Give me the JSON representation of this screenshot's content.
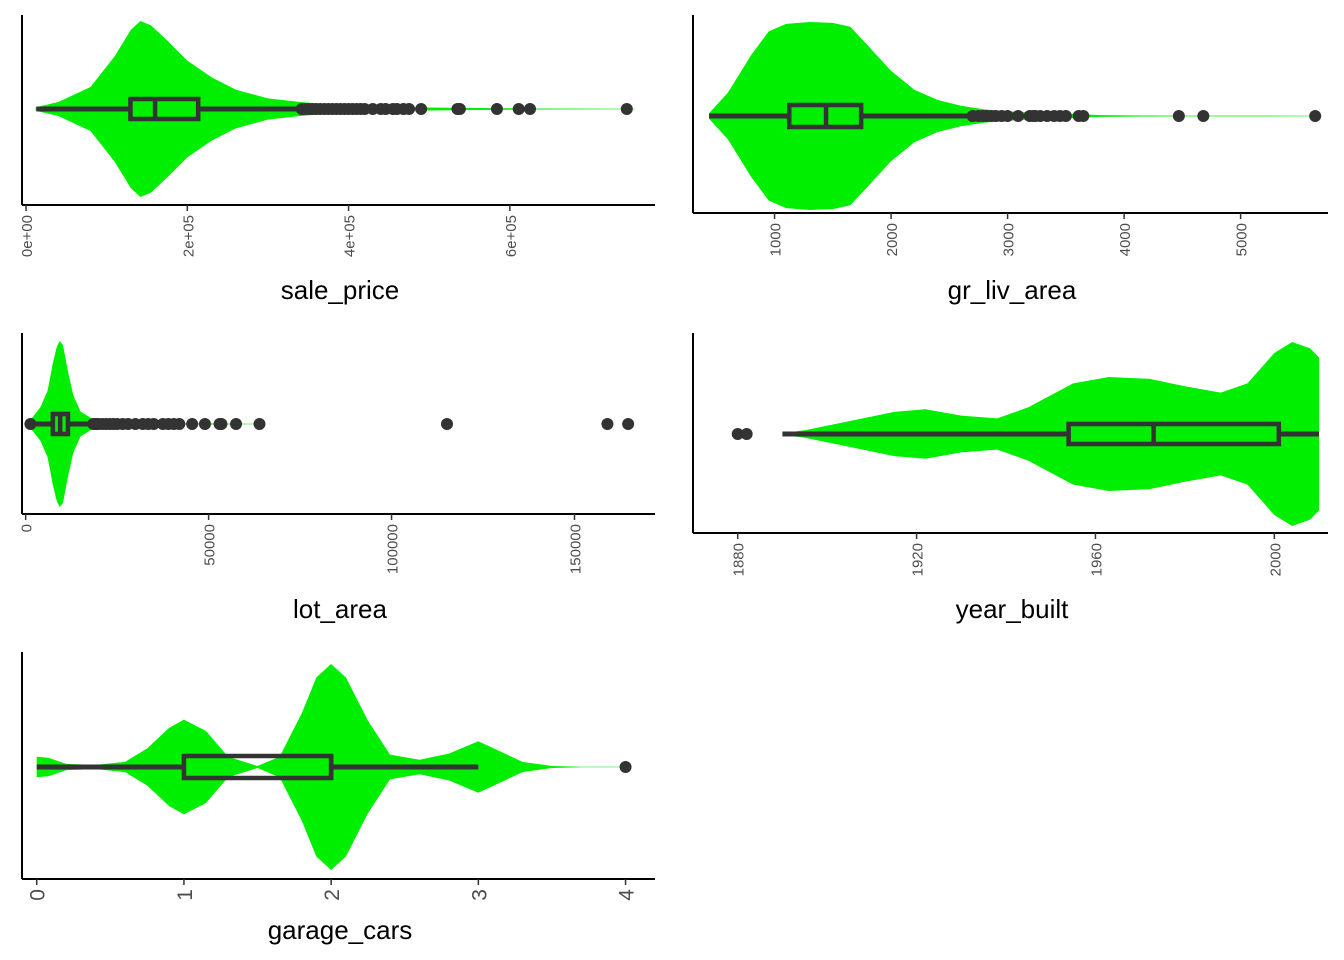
{
  "chart_data": [
    {
      "type": "violin-box",
      "xlabel": "sale_price",
      "xlim": [
        -5000,
        780000
      ],
      "ticks": [
        0,
        200000,
        400000,
        600000
      ],
      "tick_labels": [
        "0e+00",
        "2e+05",
        "4e+05",
        "6e+05"
      ],
      "fill_color": "#00ee00",
      "box": {
        "whisker_low": 12789,
        "q1": 129500,
        "median": 160000,
        "q3": 213500,
        "whisker_high": 339000
      },
      "density": [
        [
          12000,
          0.02
        ],
        [
          40000,
          0.08
        ],
        [
          80000,
          0.25
        ],
        [
          110000,
          0.6
        ],
        [
          130000,
          0.9
        ],
        [
          142000,
          1.0
        ],
        [
          155000,
          0.95
        ],
        [
          175000,
          0.78
        ],
        [
          200000,
          0.55
        ],
        [
          230000,
          0.36
        ],
        [
          260000,
          0.22
        ],
        [
          300000,
          0.12
        ],
        [
          340000,
          0.08
        ],
        [
          380000,
          0.05
        ],
        [
          420000,
          0.03
        ],
        [
          470000,
          0.02
        ],
        [
          540000,
          0.012
        ],
        [
          600000,
          0.008
        ],
        [
          630000,
          0.006
        ],
        [
          700000,
          0.004
        ],
        [
          755000,
          0.003
        ]
      ],
      "outliers": [
        342000,
        345000,
        350000,
        355000,
        360000,
        365000,
        370000,
        375000,
        380000,
        385000,
        390000,
        395000,
        400000,
        405000,
        410000,
        415000,
        420000,
        430000,
        440000,
        446000,
        455000,
        460000,
        468000,
        475000,
        490000,
        535000,
        538000,
        584000,
        611000,
        625000,
        745000
      ]
    },
    {
      "type": "violin-box",
      "xlabel": "gr_liv_area",
      "xlim": [
        300,
        5750
      ],
      "ticks": [
        1000,
        2000,
        3000,
        4000,
        5000
      ],
      "tick_labels": [
        "1000",
        "2000",
        "3000",
        "4000",
        "5000"
      ],
      "fill_color": "#00ee00",
      "box": {
        "whisker_low": 438,
        "q1": 1126,
        "median": 1442,
        "q3": 1743,
        "whisker_high": 2667
      },
      "density": [
        [
          438,
          0.03
        ],
        [
          600,
          0.25
        ],
        [
          800,
          0.65
        ],
        [
          950,
          0.9
        ],
        [
          1100,
          0.98
        ],
        [
          1300,
          1.0
        ],
        [
          1500,
          0.99
        ],
        [
          1650,
          0.95
        ],
        [
          1800,
          0.75
        ],
        [
          2000,
          0.48
        ],
        [
          2200,
          0.28
        ],
        [
          2400,
          0.17
        ],
        [
          2600,
          0.11
        ],
        [
          2800,
          0.07
        ],
        [
          3000,
          0.05
        ],
        [
          3300,
          0.03
        ],
        [
          3600,
          0.02
        ],
        [
          3800,
          0.01
        ],
        [
          4200,
          0.005
        ],
        [
          4500,
          0.004
        ],
        [
          4700,
          0.004
        ],
        [
          5650,
          0.003
        ]
      ],
      "outliers": [
        2700,
        2750,
        2790,
        2820,
        2860,
        2900,
        2950,
        3000,
        3090,
        3190,
        3220,
        3240,
        3280,
        3340,
        3400,
        3450,
        3500,
        3610,
        3650,
        4470,
        4680,
        5640
      ]
    },
    {
      "type": "violin-box",
      "xlabel": "lot_area",
      "xlim": [
        -1000,
        172000
      ],
      "ticks": [
        0,
        50000,
        100000,
        150000
      ],
      "tick_labels": [
        "0",
        "50000",
        "100000",
        "150000"
      ],
      "fill_color": "#00ee00",
      "box": {
        "whisker_low": 1300,
        "q1": 7440,
        "median": 9436,
        "q3": 11555,
        "whisker_high": 17700
      },
      "density": [
        [
          1300,
          0.05
        ],
        [
          4000,
          0.2
        ],
        [
          6000,
          0.4
        ],
        [
          7500,
          0.75
        ],
        [
          8500,
          0.93
        ],
        [
          9300,
          1.0
        ],
        [
          10200,
          0.95
        ],
        [
          11500,
          0.65
        ],
        [
          13000,
          0.35
        ],
        [
          15000,
          0.15
        ],
        [
          18000,
          0.07
        ],
        [
          22000,
          0.03
        ],
        [
          30000,
          0.015
        ],
        [
          40000,
          0.008
        ],
        [
          55000,
          0.005
        ],
        [
          65000,
          0.003
        ]
      ],
      "outliers": [
        1300,
        18500,
        19000,
        19500,
        20000,
        21000,
        22000,
        23000,
        24000,
        25000,
        26500,
        28000,
        30000,
        32000,
        33500,
        35000,
        37500,
        39000,
        40500,
        42000,
        45500,
        49000,
        53000,
        53500,
        57500,
        63900,
        115149,
        159000,
        164660
      ]
    },
    {
      "type": "violin-box",
      "xlabel": "year_built",
      "xlim": [
        1870,
        2012
      ],
      "ticks": [
        1880,
        1920,
        1960,
        2000
      ],
      "tick_labels": [
        "1880",
        "1920",
        "1960",
        "2000"
      ],
      "fill_color": "#00ee00",
      "box": {
        "whisker_low": 1890,
        "q1": 1954,
        "median": 1973,
        "q3": 2001,
        "whisker_high": 2010
      },
      "density": [
        [
          1890,
          0.01
        ],
        [
          1895,
          0.04
        ],
        [
          1905,
          0.14
        ],
        [
          1915,
          0.24
        ],
        [
          1922,
          0.27
        ],
        [
          1930,
          0.2
        ],
        [
          1938,
          0.17
        ],
        [
          1945,
          0.29
        ],
        [
          1955,
          0.55
        ],
        [
          1963,
          0.62
        ],
        [
          1972,
          0.6
        ],
        [
          1980,
          0.52
        ],
        [
          1988,
          0.45
        ],
        [
          1994,
          0.55
        ],
        [
          2000,
          0.88
        ],
        [
          2004,
          1.0
        ],
        [
          2008,
          0.93
        ],
        [
          2010,
          0.83
        ]
      ],
      "outliers": [
        1880,
        1882
      ]
    },
    {
      "type": "violin-box",
      "xlabel": "garage_cars",
      "xlim": [
        -0.1,
        4.2
      ],
      "ticks": [
        0,
        1,
        2,
        3,
        4
      ],
      "tick_labels": [
        "0",
        "1",
        "2",
        "3",
        "4"
      ],
      "fill_color": "#00ee00",
      "box": {
        "whisker_low": 0,
        "q1": 1,
        "median": 2,
        "q3": 2,
        "whisker_high": 3
      },
      "density": [
        [
          0,
          0.1
        ],
        [
          0.08,
          0.09
        ],
        [
          0.2,
          0.03
        ],
        [
          0.4,
          0.02
        ],
        [
          0.6,
          0.05
        ],
        [
          0.75,
          0.18
        ],
        [
          0.9,
          0.38
        ],
        [
          1.0,
          0.46
        ],
        [
          1.15,
          0.35
        ],
        [
          1.3,
          0.1
        ],
        [
          1.5,
          0.01
        ],
        [
          1.65,
          0.1
        ],
        [
          1.8,
          0.52
        ],
        [
          1.9,
          0.87
        ],
        [
          2.0,
          1.0
        ],
        [
          2.1,
          0.87
        ],
        [
          2.25,
          0.45
        ],
        [
          2.4,
          0.12
        ],
        [
          2.6,
          0.07
        ],
        [
          2.8,
          0.13
        ],
        [
          3.0,
          0.25
        ],
        [
          3.15,
          0.15
        ],
        [
          3.3,
          0.05
        ],
        [
          3.5,
          0.01
        ],
        [
          3.7,
          0.003
        ],
        [
          4.0,
          0.003
        ]
      ],
      "outliers": [
        4
      ]
    }
  ]
}
